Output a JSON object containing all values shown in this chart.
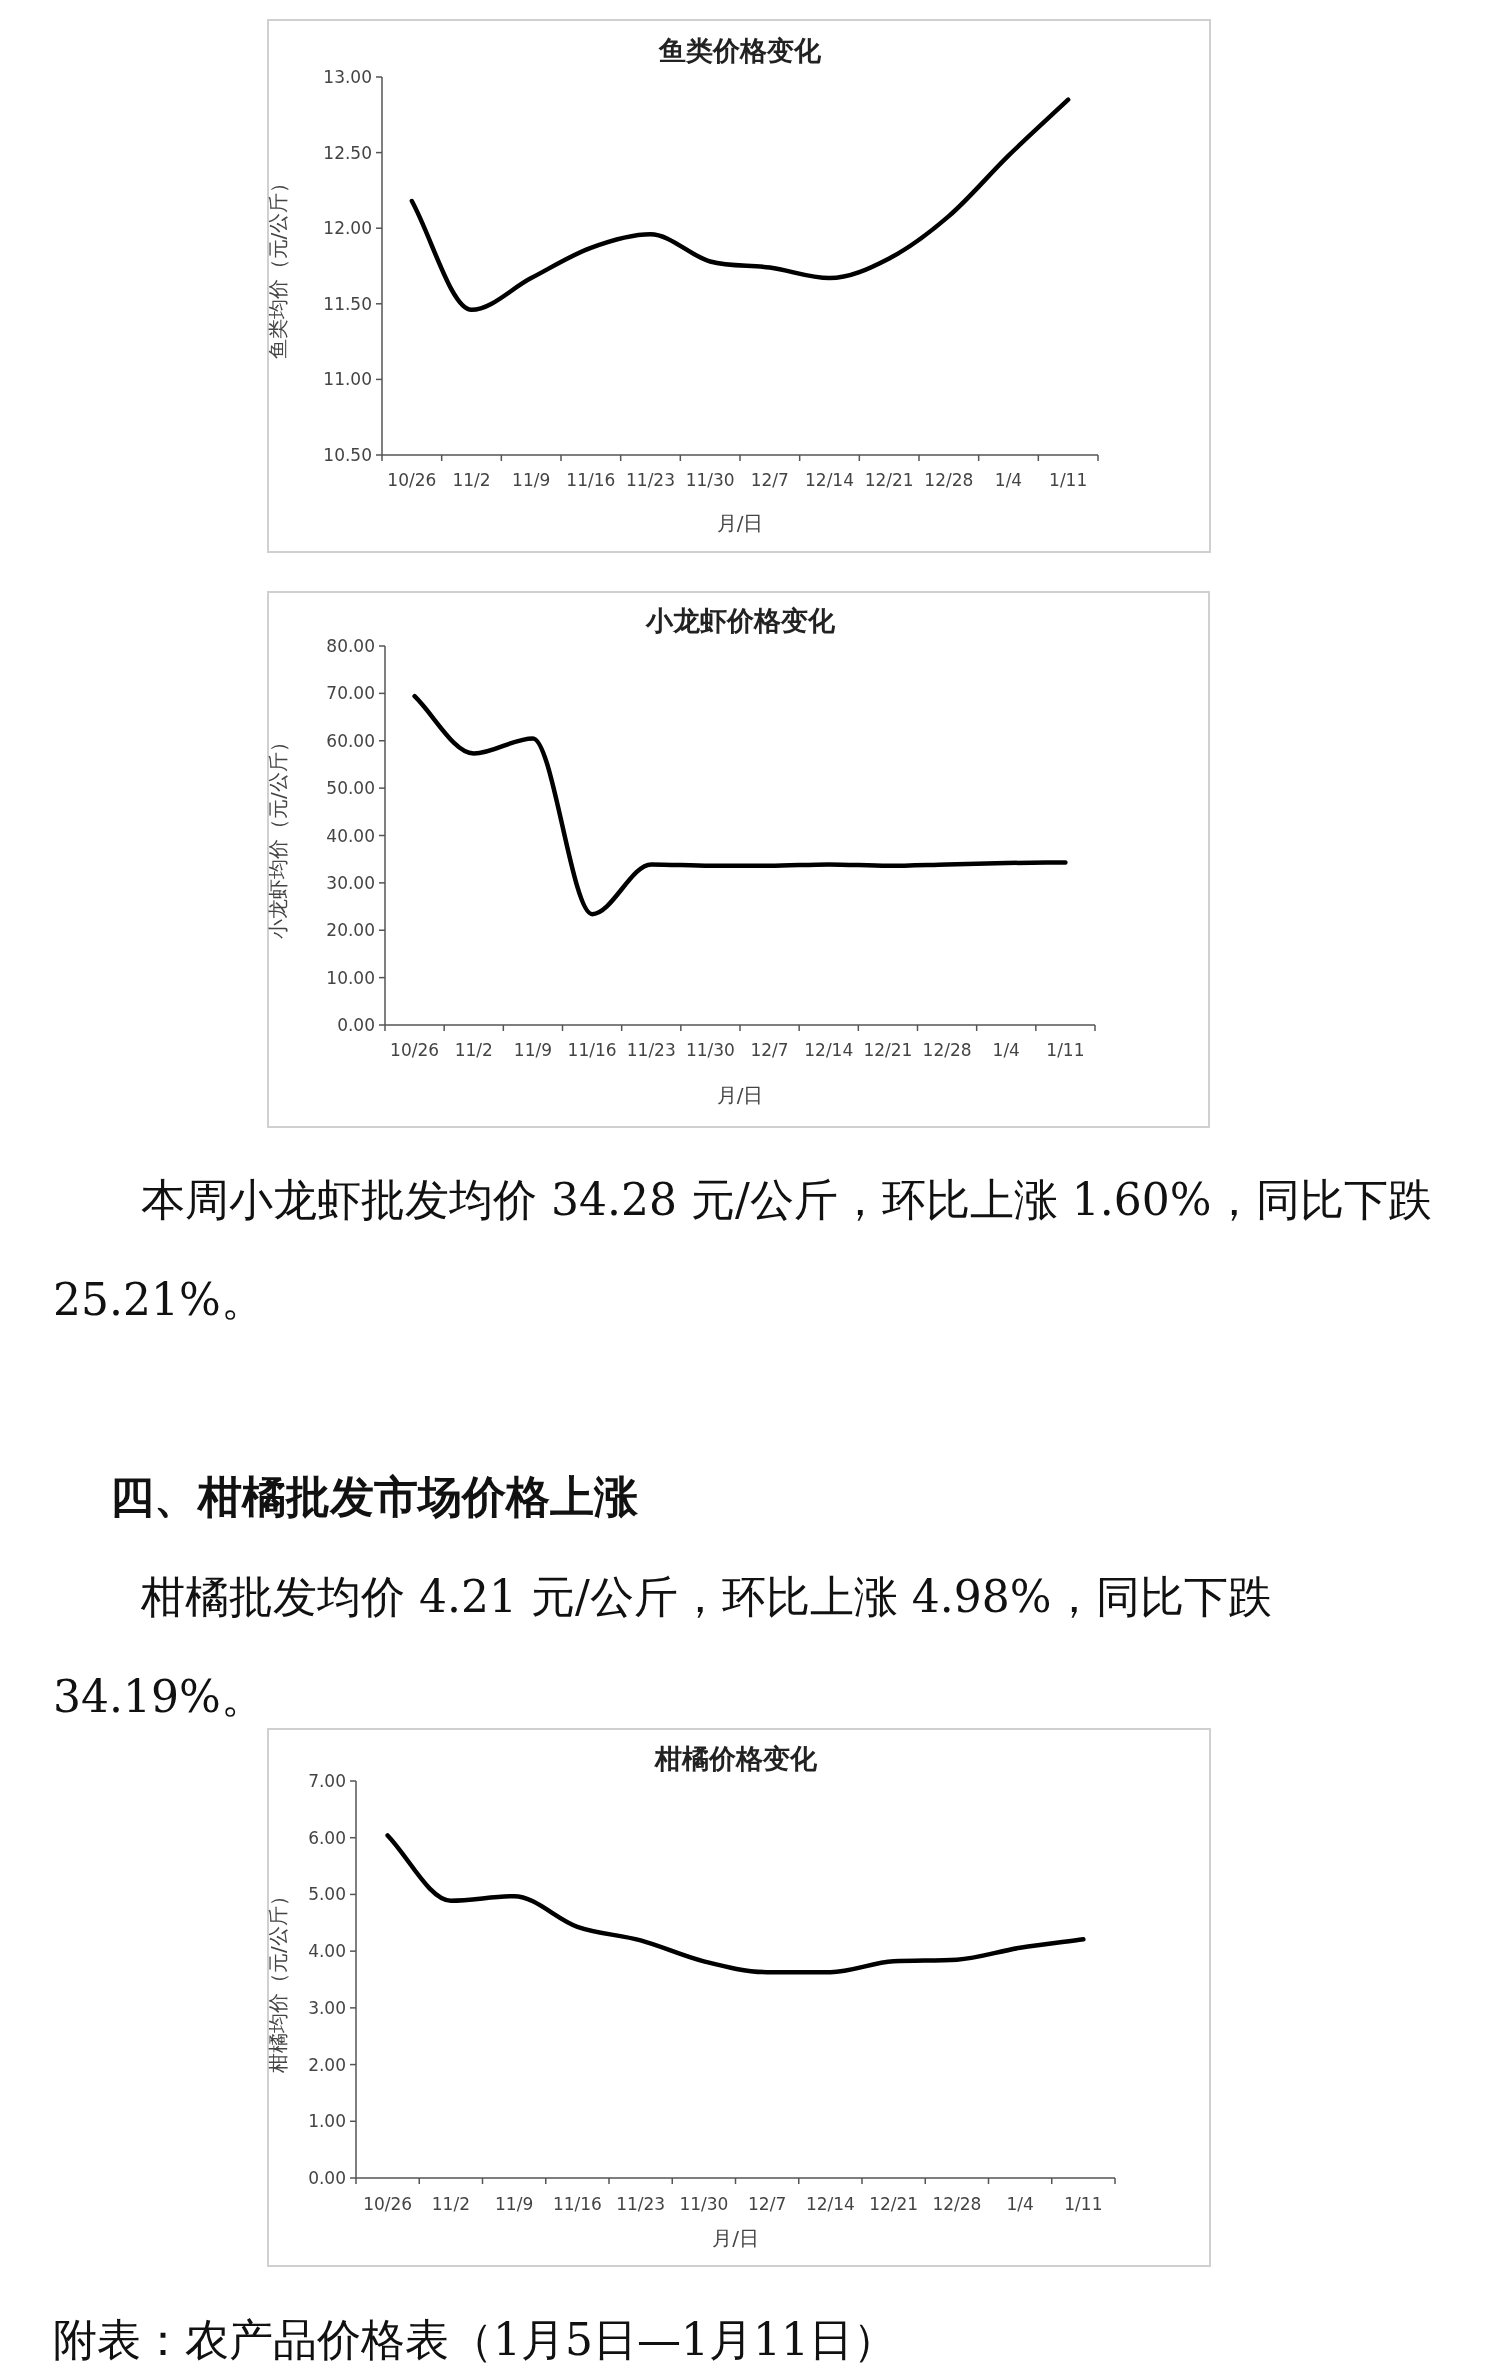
{
  "chart_data": [
    {
      "type": "line",
      "title": "鱼类价格变化",
      "xlabel": "月/日",
      "ylabel": "鱼类均价（元/公斤）",
      "categories": [
        "10/26",
        "11/2",
        "11/9",
        "11/16",
        "11/23",
        "11/30",
        "12/7",
        "12/14",
        "12/21",
        "12/28",
        "1/4",
        "1/11"
      ],
      "series": [
        {
          "color": "#000000",
          "values": [
            12.18,
            11.46,
            11.67,
            11.87,
            11.96,
            11.78,
            11.74,
            11.67,
            11.8,
            12.08,
            12.48,
            12.85
          ]
        }
      ],
      "ylim": [
        10.5,
        13
      ],
      "yticks": [
        {
          "value": 10.5,
          "label": "10.50"
        },
        {
          "value": 11,
          "label": "11.00"
        },
        {
          "value": 11.5,
          "label": "11.50"
        },
        {
          "value": 12,
          "label": "12.00"
        },
        {
          "value": 12.5,
          "label": "12.50"
        },
        {
          "value": 13,
          "label": "13.00"
        }
      ],
      "grid": false
    },
    {
      "type": "line",
      "title": "小龙虾价格变化",
      "xlabel": "月/日",
      "ylabel": "小龙虾均价（元/公斤）",
      "categories": [
        "10/26",
        "11/2",
        "11/9",
        "11/16",
        "11/23",
        "11/30",
        "12/7",
        "12/14",
        "12/21",
        "12/28",
        "1/4",
        "1/11"
      ],
      "series": [
        {
          "color": "#000000",
          "values": [
            69.4,
            57.3,
            60.5,
            23.4,
            33.9,
            33.6,
            33.6,
            33.9,
            33.6,
            33.9,
            34.2,
            34.3
          ]
        }
      ],
      "ylim": [
        0,
        80
      ],
      "yticks": [
        {
          "value": 0,
          "label": "0.00"
        },
        {
          "value": 10,
          "label": "10.00"
        },
        {
          "value": 20,
          "label": "20.00"
        },
        {
          "value": 30,
          "label": "30.00"
        },
        {
          "value": 40,
          "label": "40.00"
        },
        {
          "value": 50,
          "label": "50.00"
        },
        {
          "value": 60,
          "label": "60.00"
        },
        {
          "value": 70,
          "label": "70.00"
        },
        {
          "value": 80,
          "label": "80.00"
        }
      ],
      "grid": false,
      "annotations": [
        "本周小龙虾批发均价 34.28 元/公斤，环比上涨 1.60%，同比下跌 25.21%。"
      ]
    },
    {
      "type": "line",
      "title": "柑橘价格变化",
      "xlabel": "月/日",
      "ylabel": "柑橘均价（元/公斤）",
      "categories": [
        "10/26",
        "11/2",
        "11/9",
        "11/16",
        "11/23",
        "11/30",
        "12/7",
        "12/14",
        "12/21",
        "12/28",
        "1/4",
        "1/11"
      ],
      "series": [
        {
          "color": "#000000",
          "values": [
            6.04,
            4.89,
            4.97,
            4.43,
            4.19,
            3.82,
            3.63,
            3.63,
            3.82,
            3.85,
            4.06,
            4.21
          ]
        }
      ],
      "ylim": [
        0,
        7
      ],
      "yticks": [
        {
          "value": 0,
          "label": "0.00"
        },
        {
          "value": 1,
          "label": "1.00"
        },
        {
          "value": 2,
          "label": "2.00"
        },
        {
          "value": 3,
          "label": "3.00"
        },
        {
          "value": 4,
          "label": "4.00"
        },
        {
          "value": 5,
          "label": "5.00"
        },
        {
          "value": 6,
          "label": "6.00"
        },
        {
          "value": 7,
          "label": "7.00"
        }
      ],
      "grid": false,
      "annotations": [
        "四、柑橘批发市场价格上涨",
        "柑橘批发均价 4.21 元/公斤，环比上涨 4.98%，同比下跌 34.19%。",
        "附表：农产品价格表（1月5日—1月11日）"
      ]
    }
  ]
}
